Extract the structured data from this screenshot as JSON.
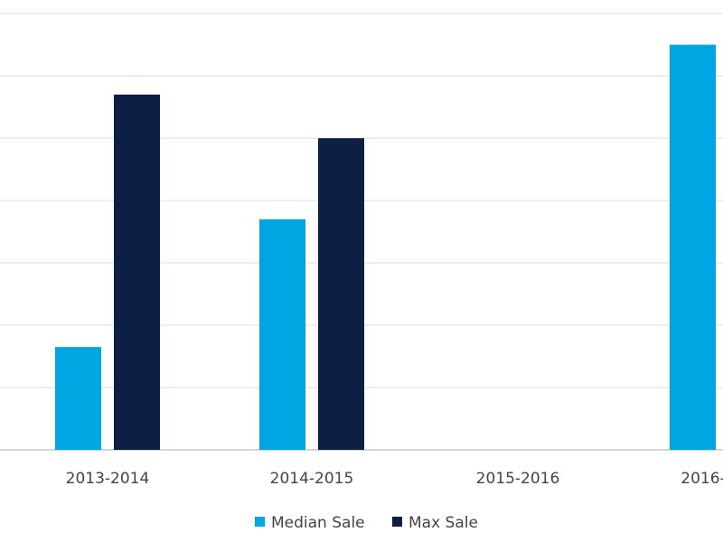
{
  "chart_data": {
    "type": "bar",
    "title": "",
    "xlabel": "",
    "ylabel": "",
    "categories": [
      "2013-2014",
      "2014-2015",
      "2015-2016",
      "2016-"
    ],
    "series": [
      {
        "name": "Median Sale",
        "color": "#00a6e2",
        "values": [
          1.65,
          3.7,
          null,
          6.5
        ]
      },
      {
        "name": "Max Sale",
        "color": "#0c1f45",
        "values": [
          5.7,
          5.0,
          null,
          null
        ]
      }
    ],
    "ylim": [
      0,
      7
    ],
    "y_gridlines": [
      0,
      1,
      2,
      3,
      4,
      5,
      6,
      7
    ],
    "y_tick_labels_visible": false,
    "grid": true,
    "legend": "bottom-center"
  }
}
